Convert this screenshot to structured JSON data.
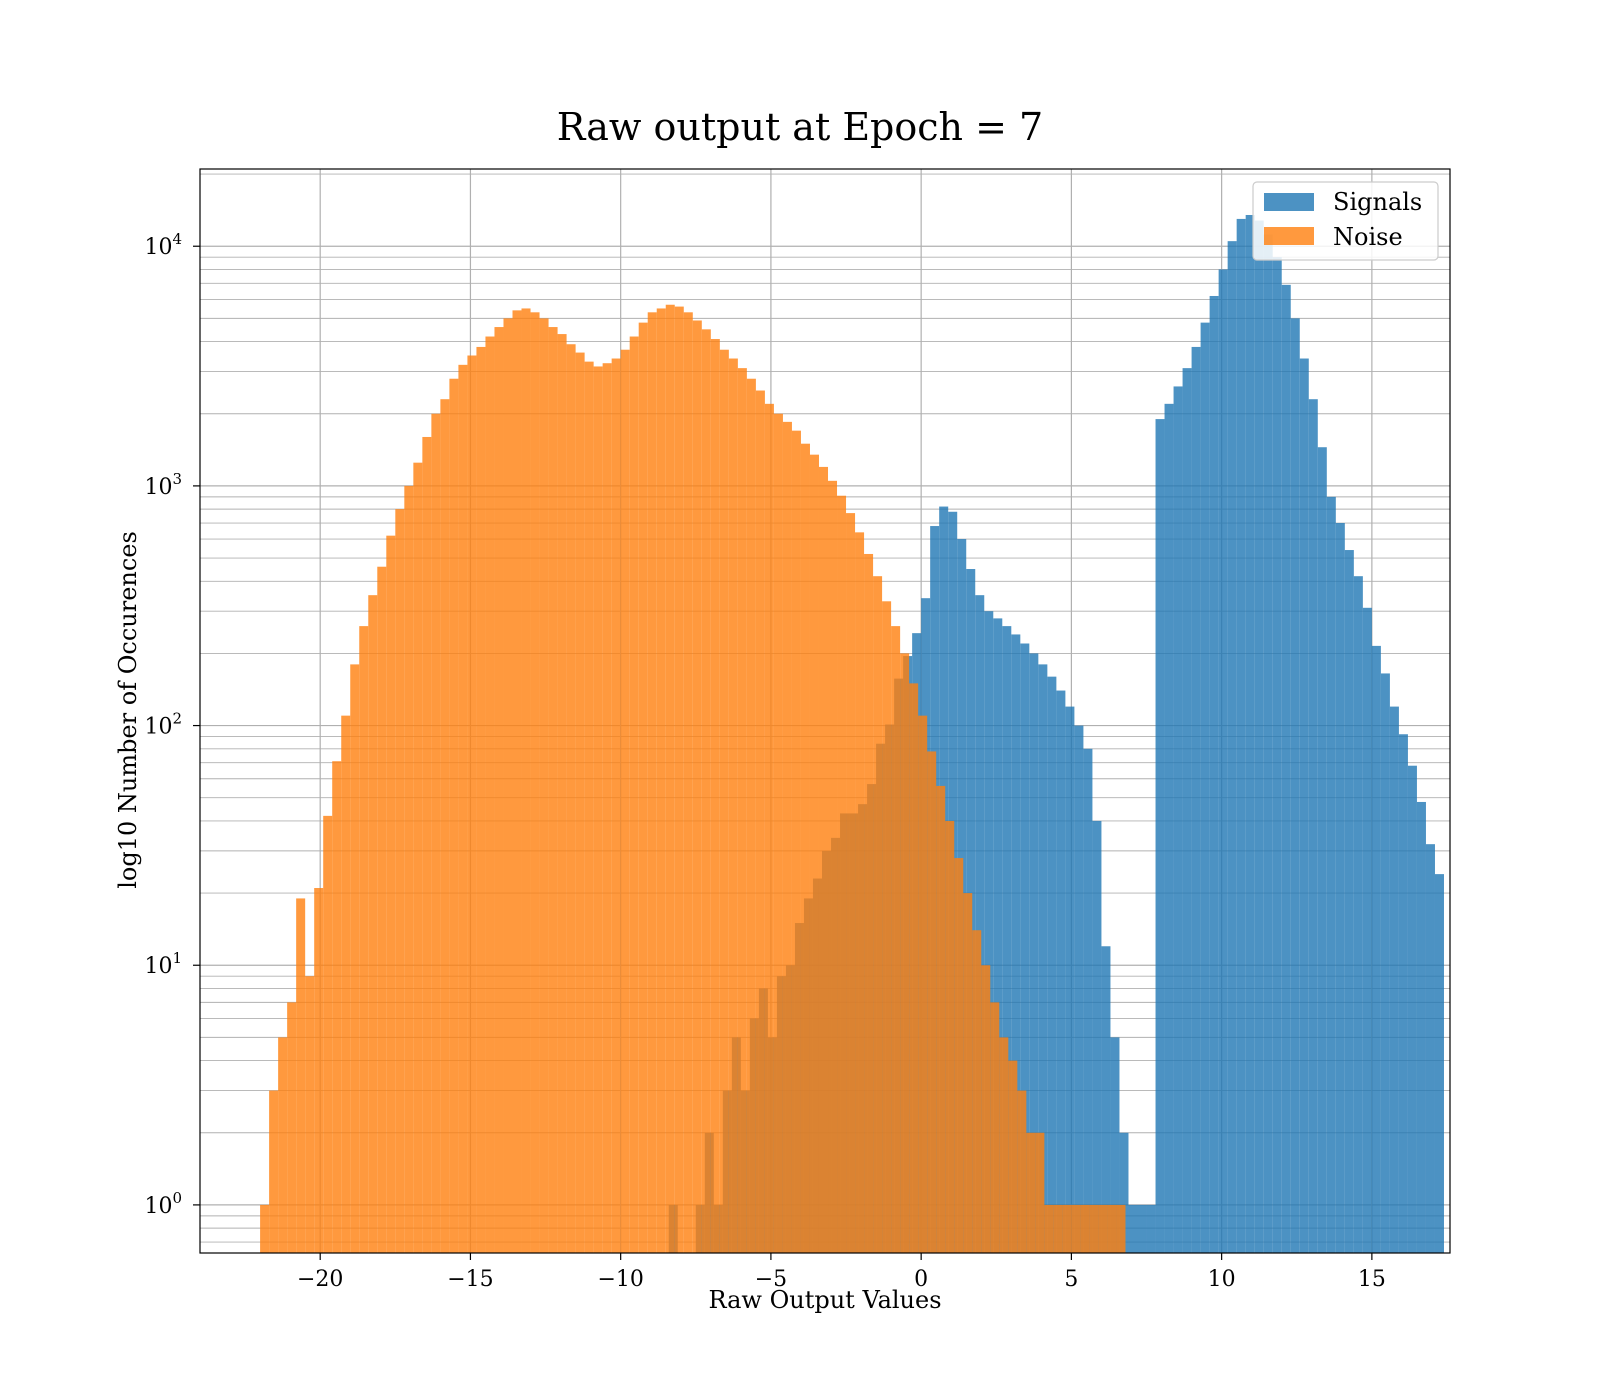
{
  "chart_data": {
    "type": "histogram",
    "title": "Raw output at Epoch = 7",
    "xlabel": "Raw Output Values",
    "ylabel": "log10 Number of Occurences",
    "xlim": [
      -24.0,
      17.6
    ],
    "ylim": [
      0.63,
      21000
    ],
    "yscale": "log",
    "grid": true,
    "legend_position": "top-right",
    "bin_width": 0.3,
    "xticks": [
      -20,
      -15,
      -10,
      -5,
      0,
      5,
      10,
      15
    ],
    "xtick_labels": [
      "−20",
      "−15",
      "−10",
      "−5",
      "0",
      "5",
      "10",
      "15"
    ],
    "yticks": [
      1,
      10,
      100,
      1000,
      10000
    ],
    "ytick_labels": [
      {
        "base": "10",
        "exp": "0"
      },
      {
        "base": "10",
        "exp": "1"
      },
      {
        "base": "10",
        "exp": "2"
      },
      {
        "base": "10",
        "exp": "3"
      },
      {
        "base": "10",
        "exp": "4"
      }
    ],
    "series": [
      {
        "name": "Signals",
        "color": "#1f77b4",
        "opacity": 0.8,
        "bins": [
          [
            -8.4,
            1
          ],
          [
            -8.1,
            0
          ],
          [
            -7.8,
            0
          ],
          [
            -7.5,
            1
          ],
          [
            -7.2,
            2
          ],
          [
            -6.9,
            1
          ],
          [
            -6.6,
            3
          ],
          [
            -6.3,
            5
          ],
          [
            -6.0,
            3
          ],
          [
            -5.7,
            6
          ],
          [
            -5.4,
            8
          ],
          [
            -5.1,
            5
          ],
          [
            -4.8,
            9
          ],
          [
            -4.5,
            10
          ],
          [
            -4.2,
            15
          ],
          [
            -3.9,
            19
          ],
          [
            -3.6,
            23
          ],
          [
            -3.3,
            30
          ],
          [
            -3.0,
            34
          ],
          [
            -2.7,
            43
          ],
          [
            -2.4,
            43
          ],
          [
            -2.1,
            47
          ],
          [
            -1.8,
            57
          ],
          [
            -1.5,
            84
          ],
          [
            -1.2,
            101
          ],
          [
            -0.9,
            157
          ],
          [
            -0.6,
            195
          ],
          [
            -0.3,
            243
          ],
          [
            0.0,
            340
          ],
          [
            0.3,
            680
          ],
          [
            0.6,
            820
          ],
          [
            0.9,
            780
          ],
          [
            1.2,
            600
          ],
          [
            1.5,
            450
          ],
          [
            1.8,
            350
          ],
          [
            2.1,
            300
          ],
          [
            2.4,
            280
          ],
          [
            2.7,
            260
          ],
          [
            3.0,
            240
          ],
          [
            3.3,
            220
          ],
          [
            3.6,
            200
          ],
          [
            3.9,
            180
          ],
          [
            4.2,
            160
          ],
          [
            4.5,
            140
          ],
          [
            4.8,
            120
          ],
          [
            5.1,
            100
          ],
          [
            5.4,
            80
          ],
          [
            5.7,
            40
          ],
          [
            6.0,
            12
          ],
          [
            6.3,
            5
          ],
          [
            6.6,
            2
          ],
          [
            6.9,
            1
          ],
          [
            7.2,
            1
          ],
          [
            7.5,
            1
          ],
          [
            7.8,
            1900
          ],
          [
            8.1,
            2200
          ],
          [
            8.4,
            2600
          ],
          [
            8.7,
            3100
          ],
          [
            9.0,
            3800
          ],
          [
            9.3,
            4800
          ],
          [
            9.6,
            6200
          ],
          [
            9.9,
            8000
          ],
          [
            10.2,
            10500
          ],
          [
            10.5,
            13000
          ],
          [
            10.8,
            13500
          ],
          [
            11.1,
            12800
          ],
          [
            11.4,
            11200
          ],
          [
            11.7,
            9000
          ],
          [
            12.0,
            6900
          ],
          [
            12.3,
            5000
          ],
          [
            12.6,
            3400
          ],
          [
            12.9,
            2300
          ],
          [
            13.2,
            1450
          ],
          [
            13.5,
            900
          ],
          [
            13.8,
            700
          ],
          [
            14.1,
            540
          ],
          [
            14.4,
            420
          ],
          [
            14.7,
            310
          ],
          [
            15.0,
            215
          ],
          [
            15.3,
            165
          ],
          [
            15.6,
            120
          ],
          [
            15.9,
            92
          ],
          [
            16.2,
            68
          ],
          [
            16.5,
            48
          ],
          [
            16.8,
            32
          ],
          [
            17.1,
            24
          ]
        ]
      },
      {
        "name": "Noise",
        "color": "#ff7f0e",
        "opacity": 0.8,
        "bins": [
          [
            -22.0,
            1
          ],
          [
            -21.7,
            3
          ],
          [
            -21.4,
            5
          ],
          [
            -21.1,
            7
          ],
          [
            -20.8,
            19
          ],
          [
            -20.5,
            9
          ],
          [
            -20.2,
            21
          ],
          [
            -19.9,
            42
          ],
          [
            -19.6,
            71
          ],
          [
            -19.3,
            110
          ],
          [
            -19.0,
            180
          ],
          [
            -18.7,
            260
          ],
          [
            -18.4,
            350
          ],
          [
            -18.1,
            460
          ],
          [
            -17.8,
            620
          ],
          [
            -17.5,
            800
          ],
          [
            -17.2,
            1000
          ],
          [
            -16.9,
            1250
          ],
          [
            -16.6,
            1600
          ],
          [
            -16.3,
            2000
          ],
          [
            -16.0,
            2300
          ],
          [
            -15.7,
            2800
          ],
          [
            -15.4,
            3200
          ],
          [
            -15.1,
            3500
          ],
          [
            -14.8,
            3800
          ],
          [
            -14.5,
            4200
          ],
          [
            -14.2,
            4600
          ],
          [
            -13.9,
            5000
          ],
          [
            -13.6,
            5400
          ],
          [
            -13.3,
            5500
          ],
          [
            -13.0,
            5300
          ],
          [
            -12.7,
            5000
          ],
          [
            -12.4,
            4600
          ],
          [
            -12.1,
            4300
          ],
          [
            -11.8,
            3900
          ],
          [
            -11.5,
            3600
          ],
          [
            -11.2,
            3300
          ],
          [
            -10.9,
            3150
          ],
          [
            -10.6,
            3250
          ],
          [
            -10.3,
            3400
          ],
          [
            -10.0,
            3700
          ],
          [
            -9.7,
            4200
          ],
          [
            -9.4,
            4800
          ],
          [
            -9.1,
            5300
          ],
          [
            -8.8,
            5500
          ],
          [
            -8.5,
            5700
          ],
          [
            -8.2,
            5600
          ],
          [
            -7.9,
            5300
          ],
          [
            -7.6,
            4900
          ],
          [
            -7.3,
            4500
          ],
          [
            -7.0,
            4100
          ],
          [
            -6.7,
            3700
          ],
          [
            -6.4,
            3400
          ],
          [
            -6.1,
            3100
          ],
          [
            -5.8,
            2800
          ],
          [
            -5.5,
            2500
          ],
          [
            -5.2,
            2200
          ],
          [
            -4.9,
            2000
          ],
          [
            -4.6,
            1850
          ],
          [
            -4.3,
            1700
          ],
          [
            -4.0,
            1500
          ],
          [
            -3.7,
            1350
          ],
          [
            -3.4,
            1200
          ],
          [
            -3.1,
            1050
          ],
          [
            -2.8,
            910
          ],
          [
            -2.5,
            770
          ],
          [
            -2.2,
            640
          ],
          [
            -1.9,
            520
          ],
          [
            -1.6,
            420
          ],
          [
            -1.3,
            330
          ],
          [
            -1.0,
            260
          ],
          [
            -0.7,
            200
          ],
          [
            -0.4,
            150
          ],
          [
            -0.1,
            110
          ],
          [
            0.2,
            78
          ],
          [
            0.5,
            56
          ],
          [
            0.8,
            40
          ],
          [
            1.1,
            28
          ],
          [
            1.4,
            20
          ],
          [
            1.7,
            14
          ],
          [
            2.0,
            10
          ],
          [
            2.3,
            7
          ],
          [
            2.6,
            5
          ],
          [
            2.9,
            4
          ],
          [
            3.2,
            3
          ],
          [
            3.5,
            2
          ],
          [
            3.8,
            2
          ],
          [
            4.1,
            1
          ],
          [
            4.4,
            1
          ],
          [
            4.7,
            1
          ],
          [
            5.0,
            1
          ],
          [
            5.3,
            1
          ],
          [
            5.6,
            1
          ],
          [
            5.9,
            1
          ],
          [
            6.2,
            1
          ],
          [
            6.5,
            1
          ]
        ]
      }
    ]
  }
}
